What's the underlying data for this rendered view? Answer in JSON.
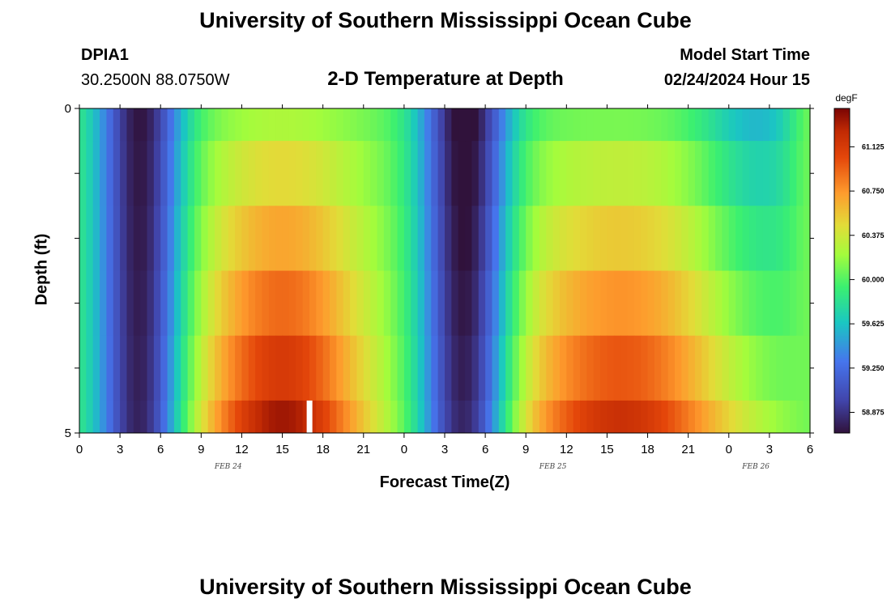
{
  "header": {
    "title_top": "University of Southern Mississippi Ocean Cube",
    "title_bottom": "University of Southern Mississippi Ocean Cube",
    "station": "DPIA1",
    "coords": "30.2500N  88.0750W",
    "plot_title": "2-D Temperature at Depth",
    "model_start_label": "Model Start Time",
    "model_start_value": "02/24/2024 Hour 15"
  },
  "chart_data": {
    "type": "heatmap",
    "title": "2-D Temperature at Depth",
    "xlabel": "Forecast Time(Z)",
    "ylabel": "Depth (ft)",
    "x_tick_labels": [
      "0",
      "3",
      "6",
      "9",
      "12",
      "15",
      "18",
      "21",
      "0",
      "3",
      "6",
      "9",
      "12",
      "15",
      "18",
      "21",
      "0",
      "3",
      "6"
    ],
    "date_labels": [
      {
        "text": "FEB 24",
        "hour": 11
      },
      {
        "text": "FEB 25",
        "hour": 35
      },
      {
        "text": "FEB 26",
        "hour": 50
      }
    ],
    "y_tick_labels": [
      {
        "depth": 0,
        "label": "0"
      },
      {
        "depth": 5,
        "label": "5"
      }
    ],
    "x_range_hours": [
      0,
      54
    ],
    "y_range_ft": [
      0,
      5
    ],
    "depth_layers_ft": [
      0.25,
      1.0,
      2.0,
      3.0,
      4.0,
      4.75
    ],
    "colorbar": {
      "unit": "degF",
      "range": [
        58.7,
        61.45
      ],
      "tick_values": [
        58.875,
        59.25,
        59.625,
        60.0,
        60.375,
        60.75,
        61.125
      ],
      "tick_labels": [
        "58.875",
        "59.250",
        "59.625",
        "60.000",
        "60.375",
        "60.750",
        "61.125"
      ]
    },
    "grid": false,
    "legend": "right colorbar"
  }
}
